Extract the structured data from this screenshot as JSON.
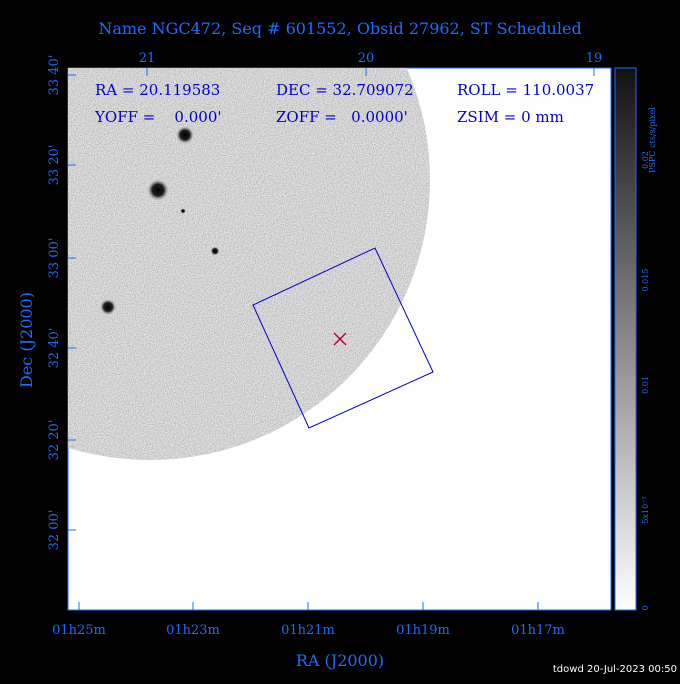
{
  "header": {
    "title": "Name NGC472, Seq # 601552, Obsid 27962, ST Scheduled"
  },
  "info": {
    "ra": "RA = 20.119583",
    "dec": "DEC = 32.709072",
    "roll": "ROLL = 110.0037",
    "yoff": "YOFF =    0.000'",
    "zoff": "ZOFF =   0.0000'",
    "zsim": "ZSIM = 0 mm"
  },
  "axes": {
    "top_labels": [
      "21",
      "20",
      "19"
    ],
    "left_labels": [
      "33 40'",
      "33 20'",
      "33 00'",
      "32 40'",
      "32 20'",
      "32 00'"
    ],
    "bottom_labels": [
      "01h25m",
      "01h23m",
      "01h21m",
      "01h19m",
      "01h17m"
    ],
    "x_title": "RA (J2000)",
    "y_title": "Dec (J2000)"
  },
  "colorbar": {
    "title": "PSPC cts/s/pixel",
    "labels": [
      "0.02",
      "0.015",
      "0.01",
      "5x10⁻³",
      "0"
    ]
  },
  "footer": "tdowd 20-Jul-2023 00:50"
}
